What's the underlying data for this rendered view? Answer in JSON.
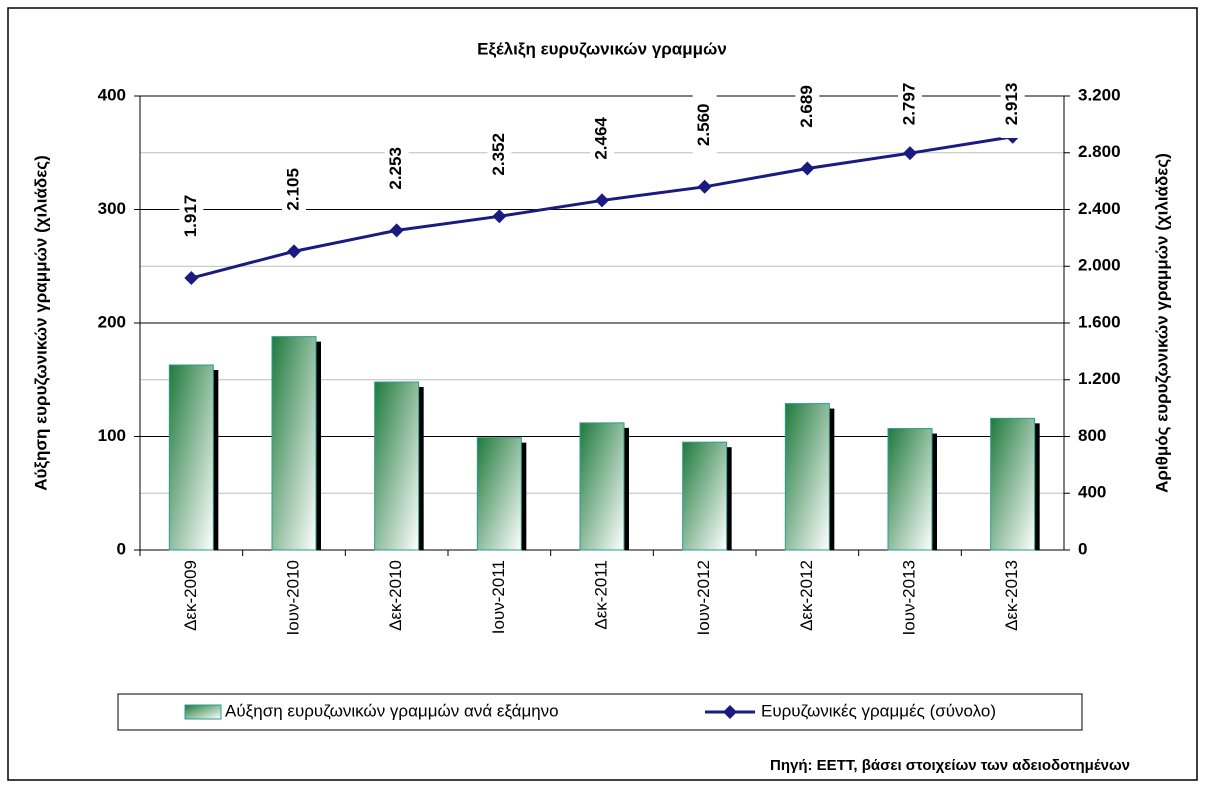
{
  "chart_data": {
    "type": "combo",
    "title": "Εξέλιξη ευρυζωνικών γραμμών",
    "y_label": "Αύξηση ευρυζωνικών γραμμών (χιλιάδες)",
    "y2_label": "Αριθμός ευρυζωνικών γραμμών (χιλιάδες)",
    "source": "Πηγή: ΕΕΤΤ, βάσει στοιχείων των αδειοδοτημένων",
    "categories": [
      "Δεκ-2009",
      "Ιουν-2010",
      "Δεκ-2010",
      "Ιουν-2011",
      "Δεκ-2011",
      "Ιουν-2012",
      "Δεκ-2012",
      "Ιουν-2013",
      "Δεκ-2013"
    ],
    "series": [
      {
        "name": "Αύξηση ευρυζωνικών γραμμών ανά εξάμηνο",
        "type": "bar",
        "color": "#1f7a3c",
        "values": [
          163,
          188,
          148,
          99,
          112,
          95,
          129,
          107,
          116
        ]
      },
      {
        "name": "Ευρυζωνικές γραμμές (σύνολο)",
        "type": "line",
        "axis": "y2",
        "color": "#1a1a80",
        "values": [
          1917,
          2105,
          2253,
          2352,
          2464,
          2560,
          2689,
          2797,
          2913
        ],
        "value_labels": [
          "1.917",
          "2.105",
          "2.253",
          "2.352",
          "2.464",
          "2.560",
          "2.689",
          "2.797",
          "2.913"
        ]
      }
    ],
    "ylim": [
      0,
      400
    ],
    "yticks": [
      0,
      100,
      200,
      300,
      400
    ],
    "y2lim": [
      0,
      3200
    ],
    "y2ticks": [
      0,
      400,
      800,
      {
        "value": 1200,
        "label": "1.200"
      },
      {
        "value": 1600,
        "label": "1.600"
      },
      {
        "value": 2000,
        "label": "2.000"
      },
      {
        "value": 2400,
        "label": "2.400"
      },
      {
        "value": 2800,
        "label": "2.800"
      },
      {
        "value": 3200,
        "label": "3.200"
      }
    ],
    "grid": true,
    "legend": "bottom"
  }
}
